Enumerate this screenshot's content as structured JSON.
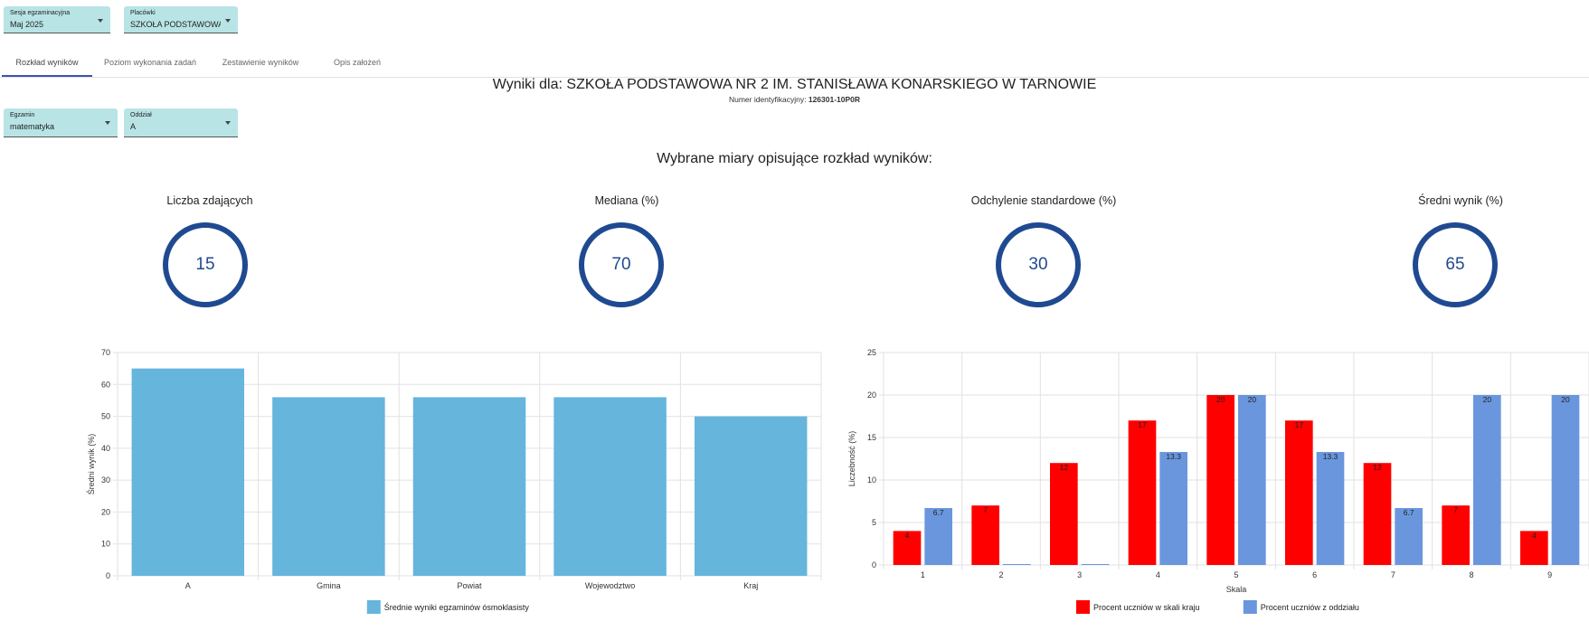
{
  "filters": {
    "session": {
      "label": "Sesja egzaminacyjna",
      "value": "Maj 2025"
    },
    "school": {
      "label": "Placówki",
      "value": "SZKOŁA PODSTAWOWA..."
    },
    "exam": {
      "label": "Egzamin",
      "value": "matematyka"
    },
    "class": {
      "label": "Oddział",
      "value": "A"
    }
  },
  "tabs": [
    {
      "label": "Rozkład wyników",
      "active": true
    },
    {
      "label": "Poziom wykonania zadań",
      "active": false
    },
    {
      "label": "Zestawienie wyników",
      "active": false
    },
    {
      "label": "Opis założeń",
      "active": false
    }
  ],
  "header": {
    "title": "Wyniki dla: SZKOŁA PODSTAWOWA NR 2 IM. STANISŁAWA KONARSKIEGO W TARNOWIE",
    "id_label": "Numer identyfikacyjny:",
    "id_value": "126301-10P0R"
  },
  "measures": {
    "heading": "Wybrane miary opisujące rozkład wyników:",
    "items": [
      {
        "label": "Liczba zdających",
        "value": "15"
      },
      {
        "label": "Mediana (%)",
        "value": "70"
      },
      {
        "label": "Odchylenie standardowe (%)",
        "value": "30"
      },
      {
        "label": "Średni wynik (%)",
        "value": "65"
      }
    ],
    "ring_color": "#1f4a91"
  },
  "chart_data": [
    {
      "type": "bar",
      "categories": [
        "A",
        "Gmina",
        "Powiat",
        "Wojewodztwo",
        "Kraj"
      ],
      "series": [
        {
          "name": "Średnie wyniki egzaminów ósmoklasisty",
          "values": [
            65,
            56,
            56,
            56,
            50
          ],
          "color": "#66b5dc"
        }
      ],
      "ylabel": "Średni wynik (%)",
      "xlabel": "",
      "ylim": [
        0,
        70
      ],
      "yticks": [
        0,
        10,
        20,
        30,
        40,
        50,
        60,
        70
      ],
      "grid": true,
      "legend": "bottom"
    },
    {
      "type": "bar",
      "categories": [
        "1",
        "2",
        "3",
        "4",
        "5",
        "6",
        "7",
        "8",
        "9"
      ],
      "series": [
        {
          "name": "Procent uczniów w skali kraju",
          "values": [
            4,
            7,
            12,
            17,
            20,
            17,
            12,
            7,
            4
          ],
          "labels": [
            "4",
            "7",
            "12",
            "17",
            "20",
            "17",
            "12",
            "7",
            "4"
          ],
          "color": "#ff0000"
        },
        {
          "name": "Procent uczniów z oddziału",
          "values": [
            6.7,
            0,
            0,
            13.3,
            20,
            13.3,
            6.7,
            20,
            20
          ],
          "labels": [
            "6.7",
            "",
            "",
            "13.3",
            "20",
            "13.3",
            "6.7",
            "20",
            "20"
          ],
          "color": "#6a96dd"
        }
      ],
      "xlabel": "Skala",
      "ylabel": "Liczebność (%)",
      "ylim": [
        0,
        25
      ],
      "yticks": [
        0,
        5,
        10,
        15,
        20,
        25
      ],
      "grid": true,
      "legend": "bottom"
    }
  ]
}
